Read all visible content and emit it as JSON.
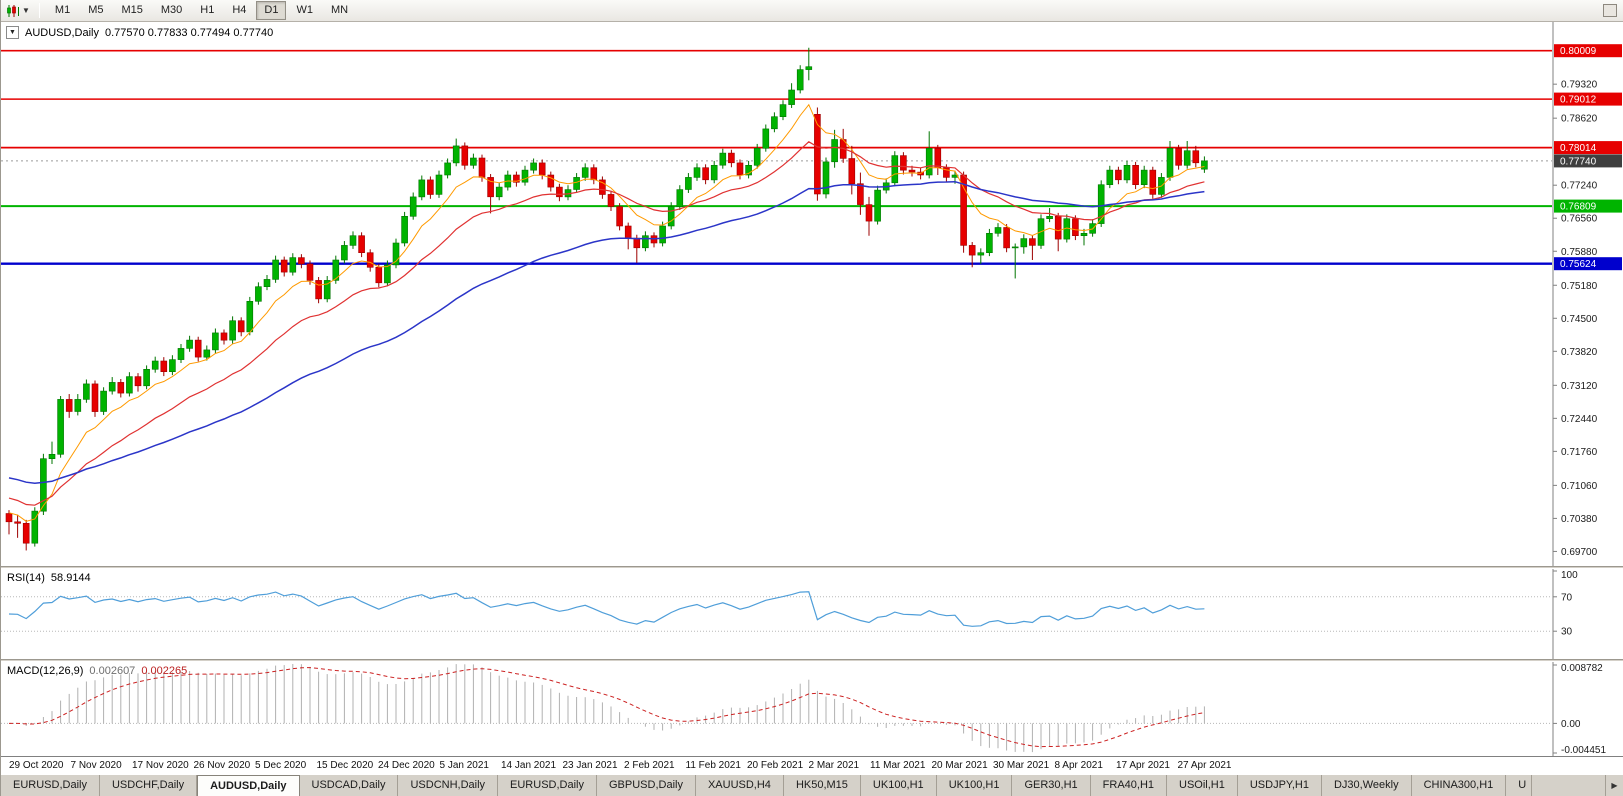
{
  "toolbar": {
    "timeframes": [
      "M1",
      "M5",
      "M15",
      "M30",
      "H1",
      "H4",
      "D1",
      "W1",
      "MN"
    ],
    "active": "D1"
  },
  "chart": {
    "symbol": "AUDUSD,Daily",
    "ohlc_line": "0.77570 0.77833 0.77494 0.77740",
    "one_click_arrow": "▼",
    "y_ticks": [
      "0.79320",
      "0.78620",
      "0.77240",
      "0.76560",
      "0.75880",
      "0.75180",
      "0.74500",
      "0.73820",
      "0.73120",
      "0.72440",
      "0.71760",
      "0.71060",
      "0.70380",
      "0.69700"
    ],
    "hlines": [
      {
        "value": 0.80009,
        "label": "0.80009",
        "color": "#e60000",
        "width": 1.6
      },
      {
        "value": 0.79012,
        "label": "0.79012",
        "color": "#e60000",
        "width": 1.6
      },
      {
        "value": 0.78014,
        "label": "0.78014",
        "color": "#e60000",
        "width": 1.8
      },
      {
        "value": 0.76809,
        "label": "0.76809",
        "color": "#00b400",
        "width": 2
      },
      {
        "value": 0.75624,
        "label": "0.75624",
        "color": "#0000cd",
        "width": 2.4
      }
    ],
    "current_price": {
      "value": 0.7774,
      "label": "0.77740",
      "badge_color": "#3f3f3f"
    },
    "moving_averages": [
      {
        "period": 8,
        "seed": 0.7055,
        "color_key": "ma_fast",
        "width": 1
      },
      {
        "period": 20,
        "seed": 0.7085,
        "color_key": "ma_mid",
        "width": 1.2
      },
      {
        "period": 50,
        "seed": 0.7125,
        "color_key": "ma_slow",
        "width": 1.5
      }
    ]
  },
  "rsi": {
    "name": "RSI(14)",
    "value": "58.9144",
    "period": 14,
    "levels": [
      {
        "label": "100",
        "value": 100
      },
      {
        "label": "70",
        "value": 70
      },
      {
        "label": "30",
        "value": 30
      }
    ]
  },
  "macd": {
    "name": "MACD(12,26,9)",
    "value_main": "0.002607",
    "value_signal": "0.002265",
    "fast": 12,
    "slow": 26,
    "signal": 9,
    "scale": [
      {
        "label": "0.008782",
        "value": 0.008782
      },
      {
        "label": "0.00",
        "value": 0
      },
      {
        "label": "-0.004451",
        "value": -0.004451
      }
    ]
  },
  "colors": {
    "candle_up": "#00b300",
    "candle_up_border": "#007500",
    "candle_down": "#e60000",
    "candle_down_border": "#9d0000",
    "ma_fast": "#ff9a00",
    "ma_mid": "#e03232",
    "ma_slow": "#2b35c8",
    "rsi_line": "#4f9ed9",
    "macd_hist": "#b0b0b0",
    "macd_signal": "#cc2222",
    "level_dotted": "#b8b8b8",
    "bid_line": "#9a9a9a",
    "scale_line": "#808080"
  },
  "chart_data": [
    {
      "type": "candlestick",
      "symbol": "AUDUSD",
      "timeframe": "Daily",
      "title": "AUDUSD,Daily",
      "open": 0.7757,
      "high": 0.77833,
      "low": 0.77494,
      "close": 0.7774,
      "ylim": [
        0.694,
        0.806
      ],
      "x_labels": [
        "29 Oct 2020",
        "7 Nov 2020",
        "17 Nov 2020",
        "26 Nov 2020",
        "5 Dec 2020",
        "15 Dec 2020",
        "24 Dec 2020",
        "5 Jan 2021",
        "14 Jan 2021",
        "23 Jan 2021",
        "2 Feb 2021",
        "11 Feb 2021",
        "20 Feb 2021",
        "2 Mar 2021",
        "11 Mar 2021",
        "20 Mar 2021",
        "30 Mar 2021",
        "8 Apr 2021",
        "17 Apr 2021",
        "27 Apr 2021"
      ],
      "ohlc": [
        [
          0.7048,
          0.7055,
          0.7005,
          0.7031
        ],
        [
          0.7031,
          0.7046,
          0.6998,
          0.7028
        ],
        [
          0.7028,
          0.7035,
          0.6972,
          0.6987
        ],
        [
          0.6987,
          0.7061,
          0.698,
          0.7053
        ],
        [
          0.7053,
          0.7171,
          0.7045,
          0.7161
        ],
        [
          0.7161,
          0.7196,
          0.715,
          0.717
        ],
        [
          0.717,
          0.729,
          0.7163,
          0.7283
        ],
        [
          0.7283,
          0.7294,
          0.7245,
          0.7258
        ],
        [
          0.7258,
          0.7294,
          0.725,
          0.7283
        ],
        [
          0.7283,
          0.7324,
          0.7276,
          0.7315
        ],
        [
          0.7315,
          0.7322,
          0.7247,
          0.7258
        ],
        [
          0.7258,
          0.7308,
          0.7251,
          0.73
        ],
        [
          0.73,
          0.7329,
          0.7293,
          0.7318
        ],
        [
          0.7318,
          0.7325,
          0.7287,
          0.7296
        ],
        [
          0.7296,
          0.7339,
          0.7289,
          0.733
        ],
        [
          0.733,
          0.7337,
          0.7299,
          0.7311
        ],
        [
          0.7311,
          0.7353,
          0.7304,
          0.7345
        ],
        [
          0.7345,
          0.7371,
          0.7338,
          0.7362
        ],
        [
          0.7362,
          0.737,
          0.7331,
          0.734
        ],
        [
          0.734,
          0.7374,
          0.7333,
          0.7365
        ],
        [
          0.7365,
          0.7397,
          0.7358,
          0.7388
        ],
        [
          0.7388,
          0.7414,
          0.7381,
          0.7405
        ],
        [
          0.7405,
          0.7412,
          0.7361,
          0.737
        ],
        [
          0.737,
          0.7394,
          0.7363,
          0.7385
        ],
        [
          0.7385,
          0.7429,
          0.7378,
          0.742
        ],
        [
          0.742,
          0.7427,
          0.7396,
          0.7405
        ],
        [
          0.7405,
          0.7454,
          0.7398,
          0.7445
        ],
        [
          0.7445,
          0.7452,
          0.7413,
          0.7422
        ],
        [
          0.7422,
          0.7494,
          0.7415,
          0.7485
        ],
        [
          0.7485,
          0.7524,
          0.7478,
          0.7515
        ],
        [
          0.7515,
          0.7539,
          0.7508,
          0.753
        ],
        [
          0.753,
          0.7579,
          0.7523,
          0.757
        ],
        [
          0.757,
          0.7577,
          0.7536,
          0.7545
        ],
        [
          0.7545,
          0.7584,
          0.7538,
          0.7575
        ],
        [
          0.7575,
          0.7582,
          0.7553,
          0.7562
        ],
        [
          0.7562,
          0.7569,
          0.7519,
          0.7528
        ],
        [
          0.7528,
          0.7535,
          0.7481,
          0.749
        ],
        [
          0.749,
          0.7537,
          0.7483,
          0.7528
        ],
        [
          0.7528,
          0.7579,
          0.7521,
          0.757
        ],
        [
          0.757,
          0.7609,
          0.7563,
          0.76
        ],
        [
          0.76,
          0.7629,
          0.7593,
          0.762
        ],
        [
          0.762,
          0.7627,
          0.7576,
          0.7585
        ],
        [
          0.7585,
          0.7592,
          0.7546,
          0.7555
        ],
        [
          0.7555,
          0.7562,
          0.7514,
          0.7523
        ],
        [
          0.7523,
          0.7569,
          0.7516,
          0.756
        ],
        [
          0.756,
          0.7614,
          0.7553,
          0.7605
        ],
        [
          0.7605,
          0.7669,
          0.7598,
          0.766
        ],
        [
          0.766,
          0.7709,
          0.7653,
          0.77
        ],
        [
          0.77,
          0.7744,
          0.7693,
          0.7735
        ],
        [
          0.7735,
          0.7742,
          0.7696,
          0.7705
        ],
        [
          0.7705,
          0.7754,
          0.7698,
          0.7745
        ],
        [
          0.7745,
          0.7779,
          0.7738,
          0.777
        ],
        [
          0.777,
          0.782,
          0.7763,
          0.7805
        ],
        [
          0.7805,
          0.7812,
          0.7756,
          0.7765
        ],
        [
          0.7765,
          0.7789,
          0.7758,
          0.778
        ],
        [
          0.778,
          0.7787,
          0.7731,
          0.774
        ],
        [
          0.774,
          0.7747,
          0.7666,
          0.77
        ],
        [
          0.77,
          0.7729,
          0.7693,
          0.772
        ],
        [
          0.772,
          0.7754,
          0.7713,
          0.7745
        ],
        [
          0.7745,
          0.7752,
          0.7721,
          0.773
        ],
        [
          0.773,
          0.7764,
          0.7723,
          0.7755
        ],
        [
          0.7755,
          0.7779,
          0.7748,
          0.777
        ],
        [
          0.777,
          0.7777,
          0.7736,
          0.7745
        ],
        [
          0.7745,
          0.7752,
          0.7711,
          0.772
        ],
        [
          0.772,
          0.7727,
          0.7691,
          0.77
        ],
        [
          0.77,
          0.7724,
          0.7693,
          0.7715
        ],
        [
          0.7715,
          0.7749,
          0.7708,
          0.774
        ],
        [
          0.774,
          0.7769,
          0.7733,
          0.776
        ],
        [
          0.776,
          0.7767,
          0.7726,
          0.7735
        ],
        [
          0.7735,
          0.7742,
          0.7696,
          0.7705
        ],
        [
          0.7705,
          0.7712,
          0.7671,
          0.768
        ],
        [
          0.768,
          0.7687,
          0.7631,
          0.764
        ],
        [
          0.764,
          0.7647,
          0.7592,
          0.7615
        ],
        [
          0.7615,
          0.7622,
          0.7564,
          0.7595
        ],
        [
          0.7595,
          0.7629,
          0.7588,
          0.762
        ],
        [
          0.762,
          0.7627,
          0.7596,
          0.7605
        ],
        [
          0.7605,
          0.7649,
          0.7598,
          0.764
        ],
        [
          0.764,
          0.7689,
          0.7633,
          0.768
        ],
        [
          0.768,
          0.7724,
          0.7673,
          0.7715
        ],
        [
          0.7715,
          0.7749,
          0.7708,
          0.774
        ],
        [
          0.774,
          0.7769,
          0.7733,
          0.776
        ],
        [
          0.776,
          0.7767,
          0.7726,
          0.7735
        ],
        [
          0.7735,
          0.7774,
          0.7728,
          0.7765
        ],
        [
          0.7765,
          0.7799,
          0.7758,
          0.779
        ],
        [
          0.779,
          0.7797,
          0.7761,
          0.777
        ],
        [
          0.777,
          0.7777,
          0.7736,
          0.7745
        ],
        [
          0.7745,
          0.7774,
          0.7738,
          0.7765
        ],
        [
          0.7765,
          0.7809,
          0.7758,
          0.78
        ],
        [
          0.78,
          0.7849,
          0.7793,
          0.784
        ],
        [
          0.784,
          0.7874,
          0.7833,
          0.7865
        ],
        [
          0.7865,
          0.7899,
          0.7858,
          0.789
        ],
        [
          0.789,
          0.7934,
          0.7883,
          0.792
        ],
        [
          0.792,
          0.7971,
          0.7913,
          0.7962
        ],
        [
          0.7962,
          0.8007,
          0.794,
          0.7968
        ],
        [
          0.787,
          0.7884,
          0.7692,
          0.7706
        ],
        [
          0.7706,
          0.7781,
          0.7697,
          0.7772
        ],
        [
          0.7772,
          0.7838,
          0.776,
          0.7818
        ],
        [
          0.7818,
          0.784,
          0.777,
          0.7779
        ],
        [
          0.7779,
          0.7805,
          0.7705,
          0.7727
        ],
        [
          0.7727,
          0.775,
          0.7663,
          0.7684
        ],
        [
          0.7684,
          0.77,
          0.762,
          0.765
        ],
        [
          0.765,
          0.7723,
          0.7643,
          0.7714
        ],
        [
          0.7714,
          0.7738,
          0.7707,
          0.7729
        ],
        [
          0.7729,
          0.7794,
          0.7722,
          0.7785
        ],
        [
          0.7785,
          0.7792,
          0.7746,
          0.7755
        ],
        [
          0.7755,
          0.7764,
          0.7742,
          0.7751
        ],
        [
          0.7751,
          0.776,
          0.7736,
          0.7745
        ],
        [
          0.7745,
          0.7835,
          0.7738,
          0.78
        ],
        [
          0.78,
          0.7807,
          0.7745,
          0.776
        ],
        [
          0.776,
          0.7767,
          0.7731,
          0.774
        ],
        [
          0.774,
          0.7754,
          0.7727,
          0.7745
        ],
        [
          0.7745,
          0.7752,
          0.7585,
          0.76
        ],
        [
          0.76,
          0.7607,
          0.7555,
          0.758
        ],
        [
          0.758,
          0.7594,
          0.7562,
          0.7585
        ],
        [
          0.7585,
          0.7634,
          0.7578,
          0.7625
        ],
        [
          0.7625,
          0.7646,
          0.7618,
          0.7637
        ],
        [
          0.7637,
          0.7644,
          0.7586,
          0.7595
        ],
        [
          0.7595,
          0.7604,
          0.7532,
          0.7597
        ],
        [
          0.7597,
          0.7623,
          0.7583,
          0.7614
        ],
        [
          0.7614,
          0.7621,
          0.757,
          0.76
        ],
        [
          0.76,
          0.7664,
          0.7593,
          0.7655
        ],
        [
          0.7655,
          0.7677,
          0.7648,
          0.766
        ],
        [
          0.766,
          0.7667,
          0.7588,
          0.7613
        ],
        [
          0.7613,
          0.7664,
          0.7606,
          0.7655
        ],
        [
          0.7655,
          0.7662,
          0.7611,
          0.762
        ],
        [
          0.762,
          0.7634,
          0.76,
          0.7625
        ],
        [
          0.7625,
          0.7654,
          0.7618,
          0.7645
        ],
        [
          0.7645,
          0.7734,
          0.7638,
          0.7725
        ],
        [
          0.7725,
          0.7764,
          0.7718,
          0.7755
        ],
        [
          0.7755,
          0.7762,
          0.7726,
          0.7735
        ],
        [
          0.7735,
          0.7774,
          0.7728,
          0.7765
        ],
        [
          0.7765,
          0.7772,
          0.7716,
          0.7725
        ],
        [
          0.7725,
          0.7764,
          0.7718,
          0.7755
        ],
        [
          0.7755,
          0.7762,
          0.7696,
          0.7705
        ],
        [
          0.7705,
          0.7749,
          0.7698,
          0.774
        ],
        [
          0.774,
          0.7815,
          0.7733,
          0.78
        ],
        [
          0.78,
          0.7807,
          0.7756,
          0.7765
        ],
        [
          0.7765,
          0.7815,
          0.7758,
          0.7795
        ],
        [
          0.7795,
          0.7805,
          0.7761,
          0.777
        ],
        [
          0.7757,
          0.77833,
          0.77494,
          0.7774
        ]
      ]
    },
    {
      "type": "line",
      "name": "RSI(14)",
      "range": [
        0,
        100
      ],
      "levels": [
        70,
        30
      ],
      "current": 58.9144
    },
    {
      "type": "bar",
      "name": "MACD(12,26,9)",
      "ylim": [
        -0.004451,
        0.008782
      ],
      "current_macd": 0.002607,
      "current_signal": 0.002265
    }
  ],
  "tabs": {
    "items": [
      "EURUSD,Daily",
      "USDCHF,Daily",
      "AUDUSD,Daily",
      "USDCAD,Daily",
      "USDCNH,Daily",
      "EURUSD,Daily",
      "GBPUSD,Daily",
      "XAUUSD,H4",
      "HK50,M15",
      "UK100,H1",
      "UK100,H1",
      "GER30,H1",
      "FRA40,H1",
      "USOil,H1",
      "USDJPY,H1",
      "DJ30,Weekly",
      "CHINA300,H1"
    ],
    "active_index": 2,
    "overflow_label": "U",
    "scroll_right": "▶"
  }
}
